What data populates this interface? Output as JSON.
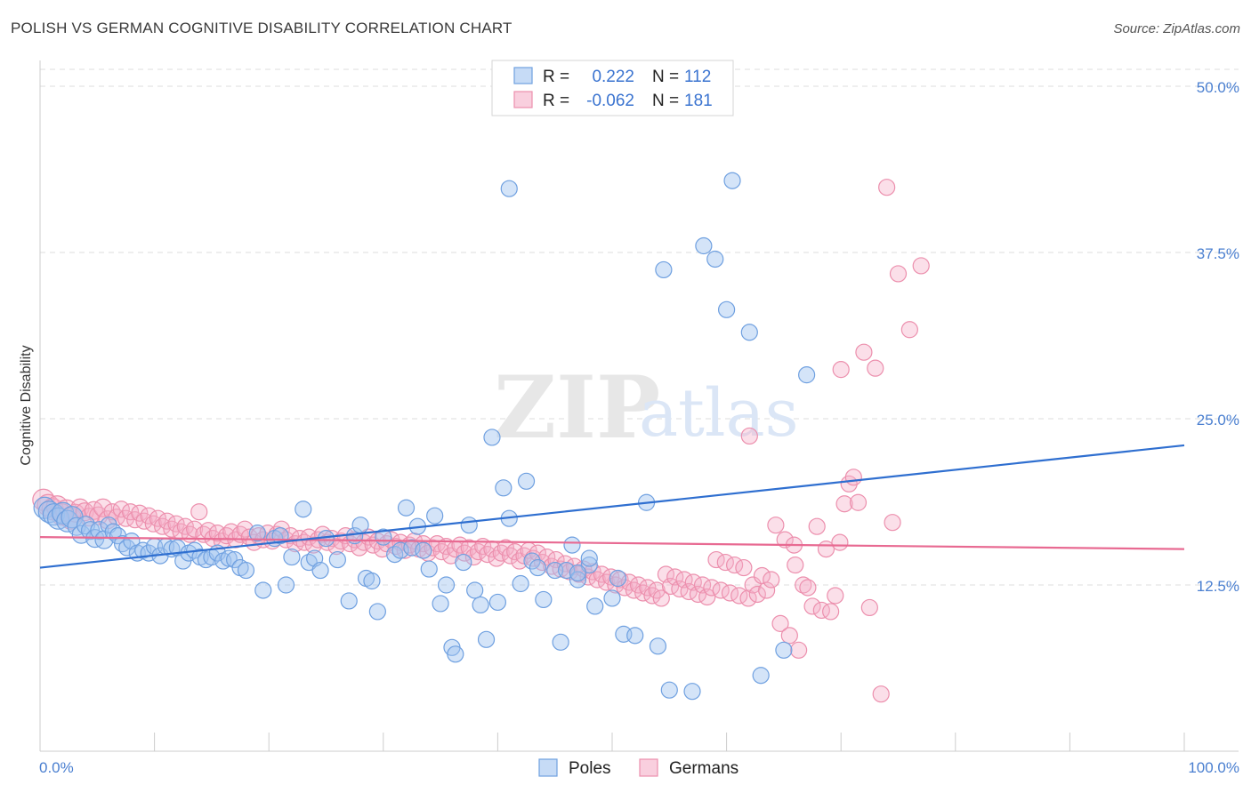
{
  "title": "POLISH VS GERMAN COGNITIVE DISABILITY CORRELATION CHART",
  "source": "Source: ZipAtlas.com",
  "watermark": {
    "zip": "ZIP",
    "atlas": "atlas"
  },
  "colors": {
    "blue": "#6fa0e0",
    "blue_fill": "rgba(160,195,240,0.45)",
    "blue_line": "#2f6fd0",
    "pink": "#ec8fad",
    "pink_fill": "rgba(245,175,200,0.40)",
    "pink_line": "#e86a92",
    "tick_text": "#4a7fd0",
    "grid": "#dddddd"
  },
  "legend_top": {
    "rows": [
      {
        "r_label": "R =",
        "r_value": "0.222",
        "n_label": "N =",
        "n_value": "112"
      },
      {
        "r_label": "R =",
        "r_value": "-0.062",
        "n_label": "N =",
        "n_value": "181"
      }
    ]
  },
  "legend_bottom": {
    "items": [
      "Poles",
      "Germans"
    ]
  },
  "chart_data": {
    "type": "scatter",
    "title": "POLISH VS GERMAN COGNITIVE DISABILITY CORRELATION CHART",
    "xlabel": "",
    "ylabel": "Cognitive Disability",
    "xlim": [
      0,
      100
    ],
    "ylim": [
      0,
      50
    ],
    "x_tick_labels": [
      "0.0%",
      "100.0%"
    ],
    "y_ticks": [
      12.5,
      25.0,
      37.5,
      50.0
    ],
    "y_tick_labels": [
      "12.5%",
      "25.0%",
      "37.5%",
      "50.0%"
    ],
    "grid": true,
    "legend_position": "top-center",
    "series": [
      {
        "name": "Poles",
        "r": 0.222,
        "n": 112,
        "trend": {
          "x": [
            0,
            100
          ],
          "y": [
            13.8,
            23.0
          ]
        },
        "points": [
          [
            0.4,
            18.3
          ],
          [
            0.8,
            18.0
          ],
          [
            1.2,
            17.8
          ],
          [
            1.6,
            17.5
          ],
          [
            2.0,
            17.9
          ],
          [
            2.4,
            17.3
          ],
          [
            2.8,
            17.6
          ],
          [
            3.2,
            16.9
          ],
          [
            3.6,
            16.3
          ],
          [
            4.0,
            17.0
          ],
          [
            4.4,
            16.6
          ],
          [
            4.8,
            16.0
          ],
          [
            5.2,
            16.6
          ],
          [
            5.6,
            15.9
          ],
          [
            6.0,
            17.0
          ],
          [
            6.4,
            16.5
          ],
          [
            6.8,
            16.2
          ],
          [
            7.2,
            15.6
          ],
          [
            7.6,
            15.3
          ],
          [
            8.0,
            15.8
          ],
          [
            8.5,
            14.9
          ],
          [
            9.0,
            15.1
          ],
          [
            9.5,
            14.9
          ],
          [
            10.0,
            15.4
          ],
          [
            10.5,
            14.7
          ],
          [
            11.0,
            15.4
          ],
          [
            11.5,
            15.2
          ],
          [
            12.0,
            15.3
          ],
          [
            12.5,
            14.3
          ],
          [
            13.0,
            14.9
          ],
          [
            13.5,
            15.1
          ],
          [
            14.0,
            14.6
          ],
          [
            14.5,
            14.4
          ],
          [
            15.0,
            14.6
          ],
          [
            15.5,
            14.9
          ],
          [
            16.0,
            14.3
          ],
          [
            16.5,
            14.5
          ],
          [
            17.0,
            14.4
          ],
          [
            17.5,
            13.8
          ],
          [
            18.0,
            13.6
          ],
          [
            19.0,
            16.4
          ],
          [
            19.5,
            12.1
          ],
          [
            20.5,
            16.0
          ],
          [
            21.0,
            16.2
          ],
          [
            21.5,
            12.5
          ],
          [
            22.0,
            14.6
          ],
          [
            23.0,
            18.2
          ],
          [
            23.5,
            14.2
          ],
          [
            24.0,
            14.5
          ],
          [
            24.5,
            13.6
          ],
          [
            25.0,
            16.0
          ],
          [
            26.0,
            14.4
          ],
          [
            27.0,
            11.3
          ],
          [
            27.5,
            16.2
          ],
          [
            28.0,
            17.0
          ],
          [
            28.5,
            13.0
          ],
          [
            29.0,
            12.8
          ],
          [
            29.5,
            10.5
          ],
          [
            30.0,
            16.1
          ],
          [
            31.0,
            14.8
          ],
          [
            31.5,
            15.1
          ],
          [
            32.0,
            18.3
          ],
          [
            32.5,
            15.3
          ],
          [
            33.0,
            16.9
          ],
          [
            33.5,
            15.1
          ],
          [
            34.0,
            13.7
          ],
          [
            34.5,
            17.7
          ],
          [
            35.0,
            11.1
          ],
          [
            35.5,
            12.5
          ],
          [
            36.0,
            7.8
          ],
          [
            36.3,
            7.3
          ],
          [
            37.0,
            14.2
          ],
          [
            37.5,
            17.0
          ],
          [
            38.0,
            12.1
          ],
          [
            38.5,
            11.0
          ],
          [
            39.0,
            8.4
          ],
          [
            39.5,
            23.6
          ],
          [
            40.0,
            11.2
          ],
          [
            40.5,
            19.8
          ],
          [
            41.0,
            17.5
          ],
          [
            42.0,
            12.6
          ],
          [
            42.5,
            20.3
          ],
          [
            43.0,
            14.3
          ],
          [
            44.0,
            11.4
          ],
          [
            45.0,
            13.6
          ],
          [
            45.5,
            8.2
          ],
          [
            46.0,
            13.6
          ],
          [
            46.5,
            15.5
          ],
          [
            47.0,
            12.9
          ],
          [
            48.0,
            14.0
          ],
          [
            48.5,
            10.9
          ],
          [
            50.0,
            11.5
          ],
          [
            51.0,
            8.8
          ],
          [
            52.0,
            8.7
          ],
          [
            53.0,
            18.7
          ],
          [
            54.0,
            7.9
          ],
          [
            55.0,
            4.6
          ],
          [
            57.0,
            4.5
          ],
          [
            58.0,
            38.0
          ],
          [
            59.0,
            37.0
          ],
          [
            60.0,
            33.2
          ],
          [
            60.5,
            42.9
          ],
          [
            62.0,
            31.5
          ],
          [
            63.0,
            5.7
          ],
          [
            65.0,
            7.6
          ],
          [
            67.0,
            28.3
          ],
          [
            41.0,
            42.3
          ],
          [
            54.5,
            36.2
          ],
          [
            48.0,
            14.5
          ],
          [
            47.0,
            13.4
          ],
          [
            43.5,
            13.8
          ],
          [
            50.5,
            13.0
          ]
        ]
      },
      {
        "name": "Germans",
        "r": -0.062,
        "n": 181,
        "trend": {
          "x": [
            0,
            100
          ],
          "y": [
            16.1,
            15.2
          ]
        },
        "points": [
          [
            0.3,
            18.9
          ],
          [
            0.7,
            18.5
          ],
          [
            1.1,
            18.2
          ],
          [
            1.5,
            18.4
          ],
          [
            1.9,
            17.8
          ],
          [
            2.3,
            18.1
          ],
          [
            2.7,
            17.5
          ],
          [
            3.1,
            17.9
          ],
          [
            3.5,
            18.3
          ],
          [
            3.9,
            18.0
          ],
          [
            4.3,
            17.6
          ],
          [
            4.7,
            18.1
          ],
          [
            5.1,
            17.7
          ],
          [
            5.5,
            18.3
          ],
          [
            5.9,
            17.4
          ],
          [
            6.3,
            18.0
          ],
          [
            6.7,
            17.6
          ],
          [
            7.1,
            18.2
          ],
          [
            7.5,
            17.5
          ],
          [
            7.9,
            18.0
          ],
          [
            8.3,
            17.4
          ],
          [
            8.7,
            17.9
          ],
          [
            9.1,
            17.3
          ],
          [
            9.5,
            17.7
          ],
          [
            9.9,
            17.1
          ],
          [
            10.3,
            17.5
          ],
          [
            10.7,
            16.9
          ],
          [
            11.1,
            17.3
          ],
          [
            11.5,
            16.7
          ],
          [
            11.9,
            17.1
          ],
          [
            12.3,
            16.5
          ],
          [
            12.7,
            16.9
          ],
          [
            13.1,
            16.3
          ],
          [
            13.5,
            16.7
          ],
          [
            13.9,
            18.0
          ],
          [
            14.3,
            16.3
          ],
          [
            14.7,
            16.6
          ],
          [
            15.1,
            16.0
          ],
          [
            15.5,
            16.4
          ],
          [
            15.9,
            15.8
          ],
          [
            16.3,
            16.2
          ],
          [
            16.7,
            16.5
          ],
          [
            17.1,
            15.9
          ],
          [
            17.5,
            16.3
          ],
          [
            17.9,
            16.7
          ],
          [
            18.3,
            16.1
          ],
          [
            18.7,
            15.7
          ],
          [
            19.1,
            16.2
          ],
          [
            19.5,
            15.9
          ],
          [
            19.9,
            16.4
          ],
          [
            20.3,
            15.8
          ],
          [
            20.7,
            16.3
          ],
          [
            21.1,
            16.7
          ],
          [
            21.5,
            15.9
          ],
          [
            21.9,
            16.2
          ],
          [
            22.3,
            15.6
          ],
          [
            22.7,
            16.0
          ],
          [
            23.1,
            15.7
          ],
          [
            23.5,
            16.1
          ],
          [
            23.9,
            15.5
          ],
          [
            24.3,
            15.9
          ],
          [
            24.7,
            16.3
          ],
          [
            25.1,
            15.7
          ],
          [
            25.5,
            16.0
          ],
          [
            25.9,
            15.4
          ],
          [
            26.3,
            15.8
          ],
          [
            26.7,
            16.2
          ],
          [
            27.1,
            15.6
          ],
          [
            27.5,
            15.9
          ],
          [
            27.9,
            15.3
          ],
          [
            28.3,
            15.7
          ],
          [
            28.7,
            16.1
          ],
          [
            29.1,
            15.5
          ],
          [
            29.5,
            15.8
          ],
          [
            29.9,
            15.2
          ],
          [
            30.3,
            15.6
          ],
          [
            30.7,
            15.9
          ],
          [
            31.1,
            15.4
          ],
          [
            31.5,
            15.7
          ],
          [
            31.9,
            15.1
          ],
          [
            32.3,
            15.5
          ],
          [
            32.7,
            15.8
          ],
          [
            33.1,
            15.2
          ],
          [
            33.5,
            15.6
          ],
          [
            33.9,
            14.9
          ],
          [
            34.3,
            15.3
          ],
          [
            34.7,
            15.6
          ],
          [
            35.1,
            15.0
          ],
          [
            35.5,
            15.4
          ],
          [
            35.9,
            14.7
          ],
          [
            36.3,
            15.2
          ],
          [
            36.7,
            15.5
          ],
          [
            37.1,
            14.9
          ],
          [
            37.5,
            15.3
          ],
          [
            37.9,
            14.6
          ],
          [
            38.3,
            15.0
          ],
          [
            38.7,
            15.4
          ],
          [
            39.1,
            14.8
          ],
          [
            39.5,
            15.2
          ],
          [
            39.9,
            14.5
          ],
          [
            40.3,
            14.9
          ],
          [
            40.7,
            15.3
          ],
          [
            41.1,
            14.7
          ],
          [
            41.5,
            15.0
          ],
          [
            41.9,
            14.3
          ],
          [
            42.3,
            14.7
          ],
          [
            42.7,
            15.1
          ],
          [
            43.1,
            14.5
          ],
          [
            43.5,
            14.9
          ],
          [
            43.9,
            14.2
          ],
          [
            44.3,
            14.6
          ],
          [
            44.7,
            13.9
          ],
          [
            45.1,
            14.4
          ],
          [
            45.5,
            13.7
          ],
          [
            45.9,
            14.1
          ],
          [
            46.3,
            13.5
          ],
          [
            46.7,
            13.9
          ],
          [
            47.1,
            13.3
          ],
          [
            47.5,
            13.7
          ],
          [
            47.9,
            13.1
          ],
          [
            48.3,
            13.5
          ],
          [
            48.7,
            12.9
          ],
          [
            49.1,
            13.3
          ],
          [
            49.5,
            12.7
          ],
          [
            49.9,
            13.1
          ],
          [
            50.3,
            12.5
          ],
          [
            50.7,
            12.9
          ],
          [
            51.1,
            12.3
          ],
          [
            51.5,
            12.7
          ],
          [
            51.9,
            12.1
          ],
          [
            52.3,
            12.5
          ],
          [
            52.7,
            11.9
          ],
          [
            53.1,
            12.3
          ],
          [
            53.5,
            11.7
          ],
          [
            53.9,
            12.1
          ],
          [
            54.3,
            11.5
          ],
          [
            54.7,
            13.3
          ],
          [
            55.1,
            12.4
          ],
          [
            55.5,
            13.1
          ],
          [
            55.9,
            12.2
          ],
          [
            56.3,
            12.9
          ],
          [
            56.7,
            12.0
          ],
          [
            57.1,
            12.7
          ],
          [
            57.5,
            11.8
          ],
          [
            57.9,
            12.5
          ],
          [
            58.3,
            11.6
          ],
          [
            58.7,
            12.3
          ],
          [
            59.1,
            14.4
          ],
          [
            59.5,
            12.1
          ],
          [
            59.9,
            14.2
          ],
          [
            60.3,
            11.9
          ],
          [
            60.7,
            14.0
          ],
          [
            61.1,
            11.7
          ],
          [
            61.5,
            13.8
          ],
          [
            61.9,
            11.5
          ],
          [
            62.3,
            12.5
          ],
          [
            62.7,
            11.8
          ],
          [
            63.1,
            13.2
          ],
          [
            63.5,
            12.1
          ],
          [
            63.9,
            12.9
          ],
          [
            64.3,
            17.0
          ],
          [
            64.7,
            9.6
          ],
          [
            65.1,
            15.9
          ],
          [
            65.5,
            8.7
          ],
          [
            65.9,
            15.5
          ],
          [
            66.3,
            7.6
          ],
          [
            66.7,
            12.5
          ],
          [
            67.1,
            12.3
          ],
          [
            67.5,
            10.9
          ],
          [
            67.9,
            16.9
          ],
          [
            68.3,
            10.6
          ],
          [
            68.7,
            15.2
          ],
          [
            69.1,
            10.5
          ],
          [
            69.5,
            11.7
          ],
          [
            69.9,
            15.7
          ],
          [
            70.3,
            18.6
          ],
          [
            70.7,
            20.1
          ],
          [
            71.1,
            20.6
          ],
          [
            71.5,
            18.7
          ],
          [
            72.0,
            30.0
          ],
          [
            73.0,
            28.8
          ],
          [
            74.0,
            42.4
          ],
          [
            75.0,
            35.9
          ],
          [
            76.0,
            31.7
          ],
          [
            77.0,
            36.5
          ],
          [
            72.5,
            10.8
          ],
          [
            73.5,
            4.3
          ],
          [
            74.5,
            17.2
          ],
          [
            62.0,
            23.7
          ],
          [
            70.0,
            28.7
          ],
          [
            66.0,
            14.0
          ]
        ]
      }
    ]
  }
}
